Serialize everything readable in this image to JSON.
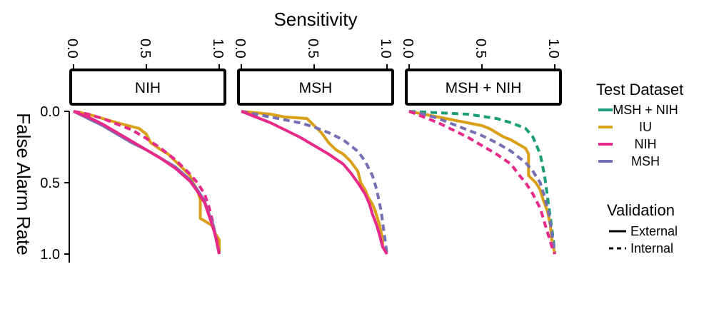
{
  "chart_data": {
    "type": "line",
    "title": "",
    "xlabel": "Sensitivity",
    "ylabel": "False Alarm Rate",
    "xlim": [
      0,
      1
    ],
    "ylim": [
      0,
      1
    ],
    "x_ticks": [
      "0.0",
      "0.5",
      "1.0"
    ],
    "y_ticks": [
      "0.0",
      "0.5",
      "1.0"
    ],
    "x_axis_position": "top",
    "y_axis_reversed": true,
    "grid": false,
    "colors": {
      "MSH + NIH": "#1b9e77",
      "IU": "#d9a017",
      "NIH": "#e7298a",
      "MSH": "#7570b3"
    },
    "panels": [
      {
        "strip": "NIH",
        "series": [
          {
            "name": "IU",
            "validation": "External",
            "points": [
              [
                0,
                0
              ],
              [
                0.1,
                0.02
              ],
              [
                0.2,
                0.05
              ],
              [
                0.3,
                0.08
              ],
              [
                0.45,
                0.12
              ],
              [
                0.5,
                0.16
              ],
              [
                0.53,
                0.22
              ],
              [
                0.6,
                0.27
              ],
              [
                0.65,
                0.3
              ],
              [
                0.7,
                0.35
              ],
              [
                0.75,
                0.4
              ],
              [
                0.8,
                0.45
              ],
              [
                0.82,
                0.5
              ],
              [
                0.85,
                0.55
              ],
              [
                0.87,
                0.62
              ],
              [
                0.87,
                0.75
              ],
              [
                0.92,
                0.78
              ],
              [
                0.95,
                0.8
              ],
              [
                0.97,
                0.85
              ],
              [
                1.0,
                0.9
              ],
              [
                1.0,
                1.0
              ]
            ]
          },
          {
            "name": "NIH",
            "validation": "Internal",
            "points": [
              [
                0,
                0
              ],
              [
                0.1,
                0.02
              ],
              [
                0.2,
                0.05
              ],
              [
                0.3,
                0.09
              ],
              [
                0.4,
                0.13
              ],
              [
                0.5,
                0.19
              ],
              [
                0.6,
                0.26
              ],
              [
                0.7,
                0.34
              ],
              [
                0.8,
                0.44
              ],
              [
                0.85,
                0.5
              ],
              [
                0.9,
                0.58
              ],
              [
                0.93,
                0.67
              ],
              [
                0.95,
                0.75
              ],
              [
                0.97,
                0.85
              ],
              [
                0.99,
                0.93
              ],
              [
                1.0,
                1.0
              ]
            ]
          },
          {
            "name": "MSH",
            "validation": "External",
            "points": [
              [
                0,
                0
              ],
              [
                0.1,
                0.05
              ],
              [
                0.2,
                0.1
              ],
              [
                0.3,
                0.16
              ],
              [
                0.4,
                0.22
              ],
              [
                0.5,
                0.27
              ],
              [
                0.6,
                0.33
              ],
              [
                0.7,
                0.39
              ],
              [
                0.8,
                0.48
              ],
              [
                0.85,
                0.55
              ],
              [
                0.9,
                0.63
              ],
              [
                0.93,
                0.72
              ],
              [
                0.96,
                0.8
              ],
              [
                0.98,
                0.9
              ],
              [
                1.0,
                1.0
              ]
            ]
          },
          {
            "name": "NIH",
            "validation": "External",
            "points": [
              [
                0,
                0
              ],
              [
                0.1,
                0.04
              ],
              [
                0.2,
                0.09
              ],
              [
                0.3,
                0.15
              ],
              [
                0.4,
                0.21
              ],
              [
                0.5,
                0.27
              ],
              [
                0.6,
                0.33
              ],
              [
                0.7,
                0.4
              ],
              [
                0.8,
                0.49
              ],
              [
                0.85,
                0.56
              ],
              [
                0.9,
                0.64
              ],
              [
                0.93,
                0.73
              ],
              [
                0.96,
                0.82
              ],
              [
                0.98,
                0.9
              ],
              [
                1.0,
                1.0
              ]
            ]
          }
        ]
      },
      {
        "strip": "MSH",
        "series": [
          {
            "name": "IU",
            "validation": "External",
            "points": [
              [
                0,
                0
              ],
              [
                0.1,
                0.01
              ],
              [
                0.2,
                0.02
              ],
              [
                0.3,
                0.04
              ],
              [
                0.45,
                0.05
              ],
              [
                0.5,
                0.1
              ],
              [
                0.55,
                0.15
              ],
              [
                0.6,
                0.22
              ],
              [
                0.65,
                0.27
              ],
              [
                0.7,
                0.3
              ],
              [
                0.75,
                0.35
              ],
              [
                0.8,
                0.42
              ],
              [
                0.82,
                0.5
              ],
              [
                0.85,
                0.55
              ],
              [
                0.87,
                0.6
              ],
              [
                0.9,
                0.65
              ],
              [
                0.92,
                0.7
              ],
              [
                0.95,
                0.8
              ],
              [
                0.97,
                0.9
              ],
              [
                0.97,
                0.95
              ],
              [
                1.0,
                1.0
              ]
            ]
          },
          {
            "name": "MSH",
            "validation": "Internal",
            "points": [
              [
                0,
                0
              ],
              [
                0.1,
                0.02
              ],
              [
                0.2,
                0.04
              ],
              [
                0.3,
                0.06
              ],
              [
                0.4,
                0.08
              ],
              [
                0.5,
                0.11
              ],
              [
                0.6,
                0.15
              ],
              [
                0.7,
                0.2
              ],
              [
                0.8,
                0.28
              ],
              [
                0.85,
                0.35
              ],
              [
                0.9,
                0.45
              ],
              [
                0.93,
                0.55
              ],
              [
                0.96,
                0.7
              ],
              [
                0.98,
                0.85
              ],
              [
                1.0,
                1.0
              ]
            ]
          },
          {
            "name": "NIH",
            "validation": "External",
            "points": [
              [
                0,
                0
              ],
              [
                0.1,
                0.04
              ],
              [
                0.2,
                0.08
              ],
              [
                0.3,
                0.13
              ],
              [
                0.4,
                0.18
              ],
              [
                0.5,
                0.24
              ],
              [
                0.6,
                0.3
              ],
              [
                0.7,
                0.37
              ],
              [
                0.75,
                0.43
              ],
              [
                0.8,
                0.5
              ],
              [
                0.85,
                0.58
              ],
              [
                0.88,
                0.65
              ],
              [
                0.9,
                0.72
              ],
              [
                0.93,
                0.8
              ],
              [
                0.95,
                0.87
              ],
              [
                0.97,
                0.95
              ],
              [
                1.0,
                1.0
              ]
            ]
          }
        ]
      },
      {
        "strip": "MSH + NIH",
        "series": [
          {
            "name": "MSH + NIH",
            "validation": "Internal",
            "points": [
              [
                0,
                0
              ],
              [
                0.2,
                0.01
              ],
              [
                0.4,
                0.02
              ],
              [
                0.6,
                0.05
              ],
              [
                0.7,
                0.08
              ],
              [
                0.8,
                0.12
              ],
              [
                0.85,
                0.18
              ],
              [
                0.9,
                0.3
              ],
              [
                0.93,
                0.45
              ],
              [
                0.95,
                0.6
              ],
              [
                0.97,
                0.75
              ],
              [
                0.99,
                0.9
              ],
              [
                1.0,
                1.0
              ]
            ]
          },
          {
            "name": "IU",
            "validation": "External",
            "points": [
              [
                0,
                0
              ],
              [
                0.1,
                0.02
              ],
              [
                0.2,
                0.04
              ],
              [
                0.3,
                0.06
              ],
              [
                0.4,
                0.08
              ],
              [
                0.5,
                0.1
              ],
              [
                0.55,
                0.12
              ],
              [
                0.6,
                0.15
              ],
              [
                0.65,
                0.18
              ],
              [
                0.7,
                0.2
              ],
              [
                0.75,
                0.23
              ],
              [
                0.8,
                0.26
              ],
              [
                0.82,
                0.3
              ],
              [
                0.82,
                0.45
              ],
              [
                0.87,
                0.5
              ],
              [
                0.9,
                0.55
              ],
              [
                0.92,
                0.62
              ],
              [
                0.95,
                0.7
              ],
              [
                0.97,
                0.8
              ],
              [
                0.98,
                0.9
              ],
              [
                1.0,
                1.0
              ]
            ]
          },
          {
            "name": "MSH",
            "validation": "Internal",
            "points": [
              [
                0,
                0
              ],
              [
                0.1,
                0.02
              ],
              [
                0.2,
                0.05
              ],
              [
                0.3,
                0.09
              ],
              [
                0.4,
                0.13
              ],
              [
                0.5,
                0.17
              ],
              [
                0.6,
                0.22
              ],
              [
                0.7,
                0.28
              ],
              [
                0.8,
                0.36
              ],
              [
                0.85,
                0.42
              ],
              [
                0.9,
                0.5
              ],
              [
                0.93,
                0.6
              ],
              [
                0.96,
                0.72
              ],
              [
                0.98,
                0.85
              ],
              [
                1.0,
                1.0
              ]
            ]
          },
          {
            "name": "NIH",
            "validation": "Internal",
            "points": [
              [
                0,
                0
              ],
              [
                0.1,
                0.04
              ],
              [
                0.2,
                0.08
              ],
              [
                0.3,
                0.13
              ],
              [
                0.4,
                0.18
              ],
              [
                0.5,
                0.24
              ],
              [
                0.6,
                0.3
              ],
              [
                0.7,
                0.37
              ],
              [
                0.75,
                0.44
              ],
              [
                0.8,
                0.5
              ],
              [
                0.85,
                0.58
              ],
              [
                0.9,
                0.68
              ],
              [
                0.93,
                0.78
              ],
              [
                0.96,
                0.88
              ],
              [
                0.98,
                0.95
              ],
              [
                1.0,
                1.0
              ]
            ]
          }
        ]
      }
    ],
    "legend": {
      "placement": "right",
      "dataset_title": "Test Dataset",
      "dataset_items": [
        {
          "label": "MSH + NIH",
          "color": "#1b9e77"
        },
        {
          "label": "IU",
          "color": "#d9a017"
        },
        {
          "label": "NIH",
          "color": "#e7298a"
        },
        {
          "label": "MSH",
          "color": "#7570b3"
        }
      ],
      "validation_title": "Validation",
      "validation_items": [
        {
          "label": "External",
          "dash": "solid"
        },
        {
          "label": "Internal",
          "dash": "dashed"
        }
      ]
    }
  }
}
